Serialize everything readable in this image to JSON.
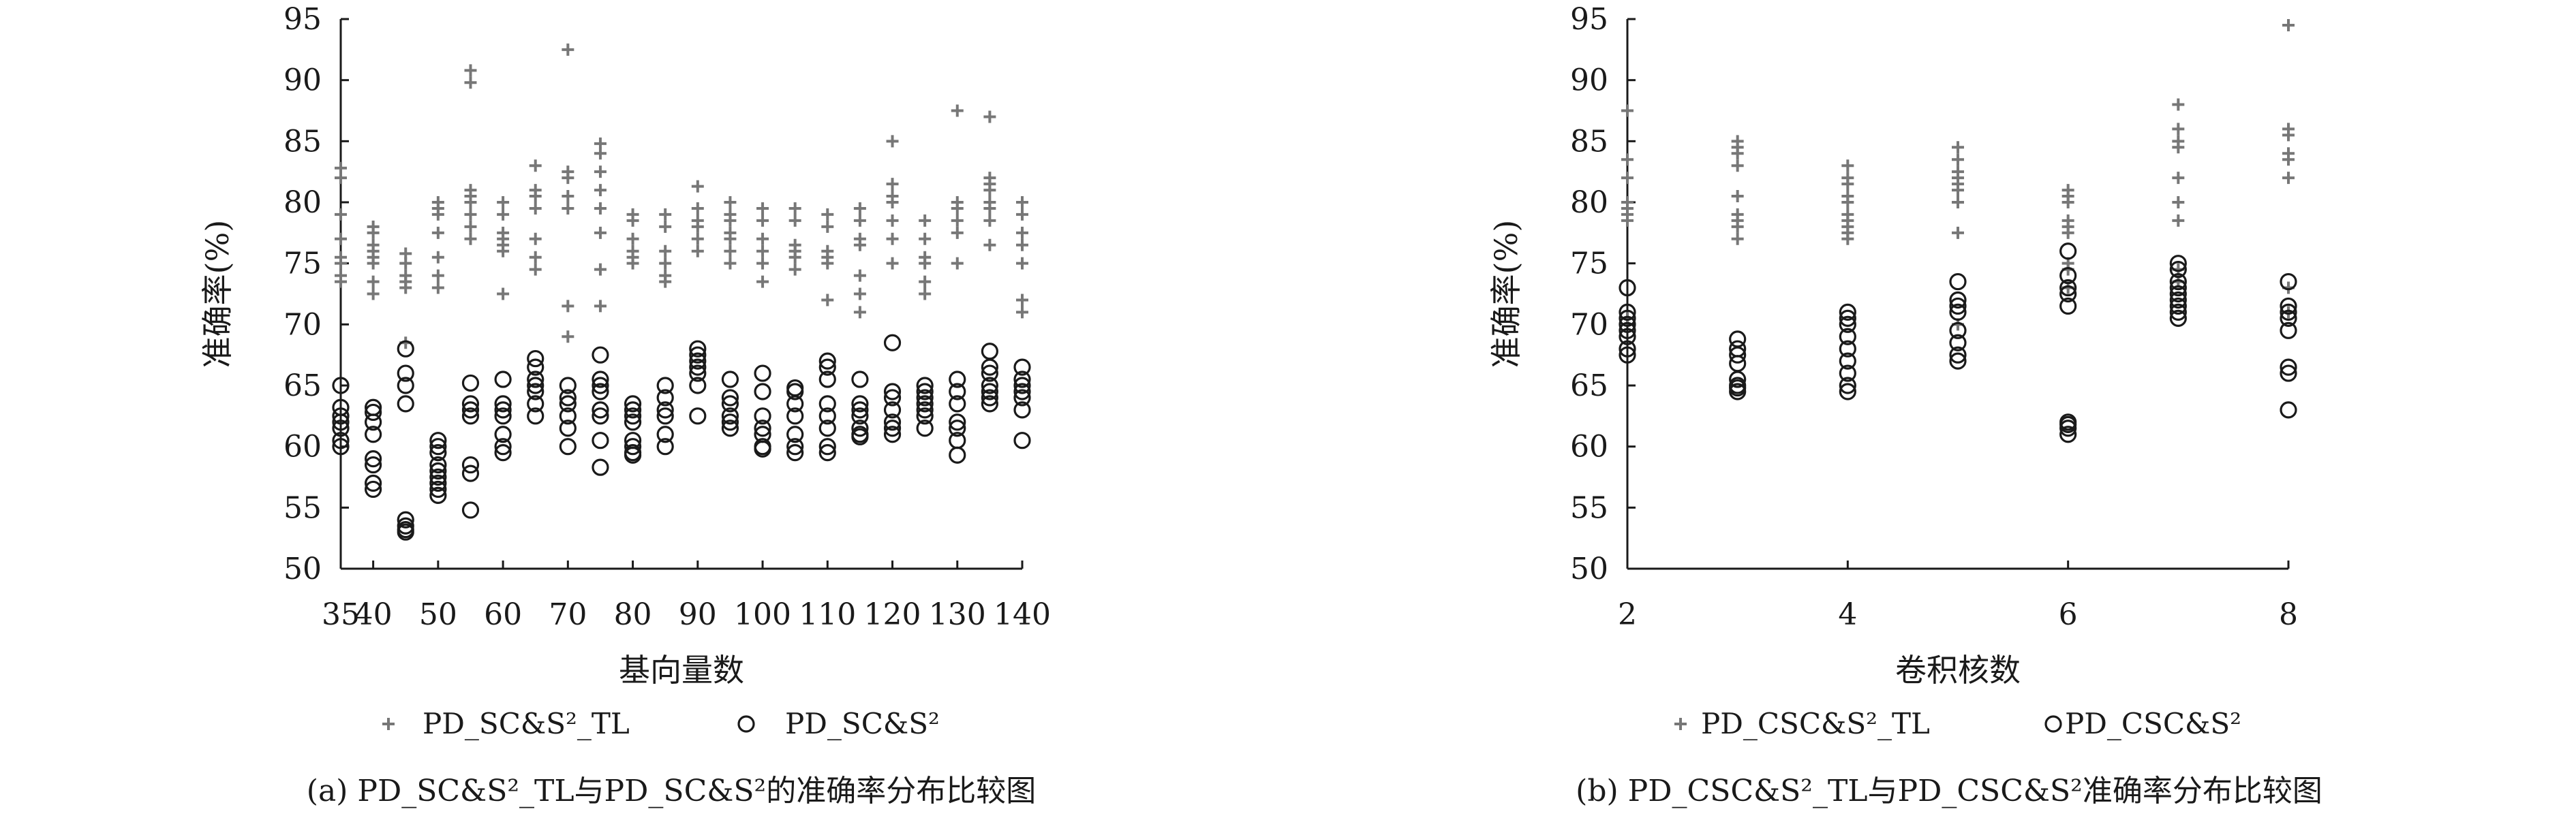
{
  "chart_data": [
    {
      "type": "scatter",
      "caption": "(a) PD_SC&S²_TL与PD_SC&S²的准确率分布比较图",
      "xlabel": "基向量数",
      "ylabel": "准确率(%)",
      "ylim": [
        50,
        95
      ],
      "yticks": [
        50,
        55,
        60,
        65,
        70,
        75,
        80,
        85,
        90,
        95
      ],
      "xlim": [
        35,
        140
      ],
      "xticks": [
        35,
        40,
        50,
        60,
        70,
        80,
        90,
        100,
        110,
        120,
        130,
        140
      ],
      "legend_position": "bottom",
      "series": [
        {
          "name": "PD_SC&S²_TL",
          "marker": "plus",
          "color": "#777777",
          "x": [
            35,
            35,
            35,
            35,
            35,
            35,
            35,
            35,
            40,
            40,
            40,
            40,
            40,
            40,
            40,
            40,
            45,
            45,
            45,
            45,
            45,
            45,
            50,
            50,
            50,
            50,
            50,
            50,
            50,
            55,
            55,
            55,
            55,
            55,
            55,
            55,
            55,
            60,
            60,
            60,
            60,
            60,
            60,
            60,
            65,
            65,
            65,
            65,
            65,
            65,
            65,
            70,
            70,
            70,
            70,
            70,
            70,
            70,
            75,
            75,
            75,
            75,
            75,
            75,
            75,
            75,
            80,
            80,
            80,
            80,
            80,
            80,
            85,
            85,
            85,
            85,
            85,
            85,
            90,
            90,
            90,
            90,
            90,
            90,
            95,
            95,
            95,
            95,
            95,
            95,
            95,
            100,
            100,
            100,
            100,
            100,
            100,
            105,
            105,
            105,
            105,
            105,
            105,
            110,
            110,
            110,
            110,
            110,
            110,
            115,
            115,
            115,
            115,
            115,
            115,
            115,
            120,
            120,
            120,
            120,
            120,
            120,
            120,
            125,
            125,
            125,
            125,
            125,
            125,
            130,
            130,
            130,
            130,
            130,
            130,
            135,
            135,
            135,
            135,
            135,
            135,
            135,
            135,
            140,
            140,
            140,
            140,
            140,
            140,
            140
          ],
          "y": [
            82.8,
            82.0,
            79.0,
            77.0,
            75.5,
            75.0,
            74.0,
            73.5,
            78.0,
            77.5,
            76.5,
            76.0,
            75.5,
            75.0,
            73.5,
            72.5,
            75.8,
            75.0,
            74.0,
            73.5,
            73.0,
            68.5,
            80.0,
            79.5,
            79.0,
            77.5,
            75.5,
            74.0,
            73.0,
            90.8,
            89.8,
            81.0,
            80.5,
            80.0,
            79.0,
            78.0,
            77.0,
            80.0,
            79.0,
            77.5,
            77.0,
            76.5,
            76.0,
            72.5,
            83.0,
            81.0,
            80.5,
            79.5,
            77.0,
            75.5,
            74.5,
            92.5,
            82.5,
            82.0,
            80.5,
            79.5,
            71.5,
            69.0,
            84.8,
            84.0,
            82.5,
            81.0,
            79.5,
            77.5,
            74.5,
            71.5,
            79.0,
            78.5,
            77.0,
            76.0,
            75.5,
            75.0,
            79.0,
            78.0,
            76.0,
            75.0,
            74.0,
            73.5,
            81.3,
            79.5,
            78.5,
            78.0,
            77.0,
            76.0,
            80.0,
            79.0,
            78.5,
            77.5,
            77.0,
            76.0,
            75.0,
            79.5,
            78.5,
            77.0,
            76.0,
            75.0,
            73.5,
            79.5,
            78.5,
            76.5,
            76.0,
            75.5,
            74.5,
            79.0,
            78.0,
            76.0,
            75.5,
            75.0,
            72.0,
            79.5,
            78.5,
            77.0,
            76.5,
            74.0,
            72.5,
            71.0,
            85.0,
            81.5,
            80.5,
            80.0,
            78.5,
            77.0,
            75.0,
            78.5,
            77.0,
            75.5,
            75.0,
            73.5,
            72.5,
            87.5,
            80.0,
            79.5,
            78.5,
            77.5,
            75.0,
            87.0,
            82.0,
            81.5,
            81.0,
            80.0,
            79.5,
            78.5,
            76.5,
            80.0,
            79.0,
            77.5,
            76.5,
            75.0,
            72.0,
            71.0
          ]
        },
        {
          "name": "PD_SC&S²",
          "marker": "circle",
          "color": "#1a1a1a",
          "x": [
            35,
            35,
            35,
            35,
            35,
            35,
            35,
            40,
            40,
            40,
            40,
            40,
            40,
            40,
            40,
            45,
            45,
            45,
            45,
            45,
            45,
            45,
            45,
            50,
            50,
            50,
            50,
            50,
            50,
            50,
            50,
            50,
            55,
            55,
            55,
            55,
            55,
            55,
            55,
            60,
            60,
            60,
            60,
            60,
            60,
            60,
            65,
            65,
            65,
            65,
            65,
            65,
            65,
            70,
            70,
            70,
            70,
            70,
            70,
            75,
            75,
            75,
            75,
            75,
            75,
            75,
            75,
            80,
            80,
            80,
            80,
            80,
            80,
            80,
            80,
            85,
            85,
            85,
            85,
            85,
            85,
            90,
            90,
            90,
            90,
            90,
            90,
            90,
            95,
            95,
            95,
            95,
            95,
            95,
            100,
            100,
            100,
            100,
            100,
            100,
            100,
            105,
            105,
            105,
            105,
            105,
            105,
            105,
            110,
            110,
            110,
            110,
            110,
            110,
            110,
            110,
            115,
            115,
            115,
            115,
            115,
            115,
            115,
            120,
            120,
            120,
            120,
            120,
            120,
            120,
            125,
            125,
            125,
            125,
            125,
            125,
            125,
            130,
            130,
            130,
            130,
            130,
            130,
            130,
            135,
            135,
            135,
            135,
            135,
            135,
            135,
            140,
            140,
            140,
            140,
            140,
            140,
            140
          ],
          "y": [
            65.0,
            63.2,
            62.5,
            62.0,
            61.5,
            60.5,
            60.0,
            63.2,
            62.8,
            62.0,
            61.0,
            59.0,
            58.5,
            57.0,
            56.5,
            68.0,
            66.0,
            65.0,
            63.5,
            54.0,
            53.5,
            53.2,
            53.0,
            60.5,
            60.0,
            59.5,
            58.5,
            58.0,
            57.5,
            57.0,
            56.5,
            56.0,
            65.2,
            63.5,
            63.0,
            62.5,
            58.5,
            57.8,
            54.8,
            65.5,
            63.5,
            63.0,
            62.5,
            61.0,
            60.0,
            59.5,
            67.2,
            66.5,
            65.5,
            65.0,
            64.5,
            63.5,
            62.5,
            65.0,
            64.0,
            63.5,
            62.5,
            61.5,
            60.0,
            67.5,
            65.5,
            65.0,
            64.5,
            63.0,
            62.5,
            60.5,
            58.3,
            63.5,
            63.0,
            62.5,
            62.0,
            60.5,
            60.0,
            59.5,
            59.3,
            65.0,
            64.0,
            63.0,
            62.5,
            61.0,
            60.0,
            68.0,
            67.5,
            67.0,
            66.5,
            66.0,
            65.0,
            62.5,
            65.5,
            64.0,
            63.5,
            62.5,
            62.0,
            61.5,
            66.0,
            64.5,
            62.5,
            61.5,
            61.0,
            60.0,
            59.8,
            64.8,
            64.5,
            63.5,
            62.5,
            61.0,
            60.0,
            59.5,
            67.0,
            66.5,
            65.5,
            63.5,
            62.5,
            61.5,
            60.0,
            59.5,
            65.5,
            63.5,
            63.0,
            62.5,
            61.5,
            61.0,
            60.8,
            68.5,
            64.5,
            64.0,
            63.0,
            62.0,
            61.5,
            61.0,
            65.0,
            64.5,
            64.0,
            63.5,
            63.0,
            62.5,
            61.5,
            65.5,
            64.5,
            63.5,
            62.0,
            61.5,
            60.5,
            59.3,
            67.8,
            66.5,
            66.0,
            65.0,
            64.5,
            64.0,
            63.5,
            66.5,
            65.5,
            65.0,
            64.5,
            64.0,
            63.0,
            60.5
          ]
        }
      ]
    },
    {
      "type": "scatter",
      "caption": "(b) PD_CSC&S²_TL与PD_CSC&S²准确率分布比较图",
      "xlabel": "卷积核数",
      "ylabel": "准确率(%)",
      "ylim": [
        50,
        95
      ],
      "yticks": [
        50,
        55,
        60,
        65,
        70,
        75,
        80,
        85,
        90,
        95
      ],
      "xlim": [
        2,
        8
      ],
      "xticks": [
        2,
        4,
        6,
        8
      ],
      "legend_position": "bottom",
      "series": [
        {
          "name": "PD_CSC&S²_TL",
          "marker": "plus",
          "color": "#777777",
          "x": [
            2,
            2,
            2,
            2,
            2,
            2,
            2,
            2,
            3,
            3,
            3,
            3,
            3,
            3,
            3,
            3,
            3,
            4,
            4,
            4,
            4,
            4,
            4,
            4,
            4,
            4,
            4,
            5,
            5,
            5,
            5,
            5,
            5,
            5,
            5,
            5,
            6,
            6,
            6,
            6,
            6,
            6,
            6,
            6,
            6,
            7,
            7,
            7,
            7,
            7,
            7,
            7,
            7,
            7,
            8,
            8,
            8,
            8,
            8,
            8,
            8,
            8
          ],
          "y": [
            87.5,
            83.5,
            82.0,
            80.0,
            79.5,
            79.0,
            78.5,
            70.5,
            85.0,
            84.5,
            84.0,
            83.0,
            80.5,
            79.0,
            78.5,
            78.0,
            77.0,
            83.0,
            82.0,
            81.5,
            80.5,
            80.0,
            79.0,
            78.5,
            78.0,
            77.5,
            77.0,
            84.5,
            83.5,
            82.5,
            82.0,
            81.5,
            81.0,
            80.0,
            77.5,
            70.0,
            81.0,
            80.5,
            80.0,
            78.5,
            78.0,
            77.5,
            75.0,
            74.5,
            73.0,
            88.0,
            86.0,
            85.0,
            84.5,
            82.0,
            80.0,
            78.5,
            74.5,
            73.5,
            94.5,
            86.0,
            85.5,
            84.0,
            83.5,
            82.0,
            73.0,
            71.0
          ]
        },
        {
          "name": "PD_CSC&S²",
          "marker": "circle",
          "color": "#1a1a1a",
          "x": [
            2,
            2,
            2,
            2,
            2,
            2,
            2,
            2,
            3,
            3,
            3,
            3,
            3,
            3,
            3,
            3,
            4,
            4,
            4,
            4,
            4,
            4,
            4,
            4,
            4,
            5,
            5,
            5,
            5,
            5,
            5,
            5,
            5,
            6,
            6,
            6,
            6,
            6,
            6,
            6,
            6,
            6,
            7,
            7,
            7,
            7,
            7,
            7,
            7,
            7,
            7,
            8,
            8,
            8,
            8,
            8,
            8,
            8,
            8
          ],
          "y": [
            73.0,
            71.0,
            70.5,
            70.0,
            69.5,
            69.0,
            68.0,
            67.5,
            68.8,
            68.0,
            67.5,
            66.8,
            65.5,
            65.0,
            64.8,
            64.5,
            71.0,
            70.5,
            70.0,
            69.0,
            68.0,
            67.0,
            66.0,
            65.0,
            64.5,
            73.5,
            72.0,
            71.5,
            71.0,
            69.5,
            68.5,
            67.5,
            67.0,
            76.0,
            74.0,
            73.0,
            72.5,
            71.5,
            62.0,
            61.8,
            61.5,
            61.0,
            75.0,
            74.5,
            73.5,
            73.0,
            72.5,
            72.0,
            71.5,
            71.0,
            70.5,
            73.5,
            71.5,
            71.0,
            70.5,
            69.5,
            66.5,
            66.0,
            63.0
          ]
        }
      ]
    }
  ]
}
